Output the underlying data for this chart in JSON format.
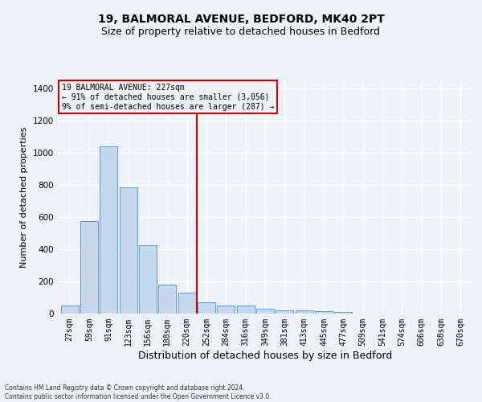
{
  "title": "19, BALMORAL AVENUE, BEDFORD, MK40 2PT",
  "subtitle": "Size of property relative to detached houses in Bedford",
  "xlabel": "Distribution of detached houses by size in Bedford",
  "ylabel": "Number of detached properties",
  "bar_color": "#c5d8ed",
  "bar_edge_color": "#5b9bd5",
  "vline_color": "#cc0000",
  "annotation_title": "19 BALMORAL AVENUE: 227sqm",
  "annotation_line1": "← 91% of detached houses are smaller (3,056)",
  "annotation_line2": "9% of semi-detached houses are larger (287) →",
  "annotation_box_color": "#cc0000",
  "footer_line1": "Contains HM Land Registry data © Crown copyright and database right 2024.",
  "footer_line2": "Contains public sector information licensed under the Open Government Licence v3.0.",
  "categories": [
    "27sqm",
    "59sqm",
    "91sqm",
    "123sqm",
    "156sqm",
    "188sqm",
    "220sqm",
    "252sqm",
    "284sqm",
    "316sqm",
    "349sqm",
    "381sqm",
    "413sqm",
    "445sqm",
    "477sqm",
    "509sqm",
    "541sqm",
    "574sqm",
    "606sqm",
    "638sqm",
    "670sqm"
  ],
  "values": [
    50,
    575,
    1040,
    785,
    425,
    180,
    130,
    70,
    52,
    52,
    28,
    22,
    22,
    14,
    8,
    0,
    0,
    0,
    0,
    0,
    0
  ],
  "ylim": [
    0,
    1450
  ],
  "yticks": [
    0,
    200,
    400,
    600,
    800,
    1000,
    1200,
    1400
  ],
  "background_color": "#eef2f8",
  "grid_color": "#ffffff",
  "title_fontsize": 10,
  "subtitle_fontsize": 9,
  "tick_fontsize": 7,
  "ylabel_fontsize": 8,
  "xlabel_fontsize": 9,
  "annotation_fontsize": 7,
  "footer_fontsize": 5.5
}
